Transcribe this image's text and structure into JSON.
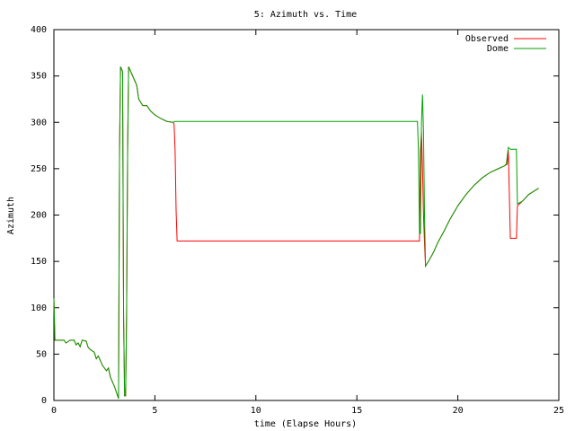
{
  "chart_data": {
    "type": "line",
    "title": "5: Azimuth vs. Time",
    "x_label": "time (Elapse Hours)",
    "y_label": "Azimuth",
    "xlim": [
      0,
      25
    ],
    "xticks": [
      0,
      5,
      10,
      15,
      20,
      25
    ],
    "ylim": [
      0,
      400
    ],
    "yticks": [
      0,
      50,
      100,
      150,
      200,
      250,
      300,
      350,
      400
    ],
    "grid": false,
    "legend": "top-right",
    "series": [
      {
        "name": "Observed",
        "color": "#ff0000",
        "x": [
          0,
          0.05,
          0.5,
          0.6,
          0.8,
          1,
          1.1,
          1.2,
          1.3,
          1.4,
          1.6,
          1.7,
          1.8,
          2.0,
          2.1,
          2.2,
          2.4,
          2.5,
          2.6,
          2.7,
          2.8,
          3.0,
          3.2,
          3.25,
          3.3,
          3.4,
          3.45,
          3.5,
          3.55,
          3.6,
          3.65,
          3.7,
          3.9,
          4.1,
          4.2,
          4.4,
          4.6,
          4.8,
          5.0,
          5.3,
          5.6,
          5.9,
          5.95,
          6.0,
          6.05,
          6.1,
          18.1,
          18.15,
          18.2,
          18.25,
          18.3,
          18.35,
          18.4,
          18.6,
          18.8,
          19.0,
          19.3,
          19.6,
          20.0,
          20.4,
          20.8,
          21.2,
          21.6,
          22.0,
          22.3,
          22.45,
          22.5,
          22.6,
          22.9,
          22.95,
          23.2,
          23.5,
          24.0
        ],
        "values": [
          110,
          65,
          65,
          62,
          65,
          65,
          60,
          62,
          58,
          65,
          64,
          57,
          55,
          52,
          45,
          48,
          38,
          35,
          32,
          35,
          25,
          15,
          2,
          270,
          360,
          355,
          90,
          5,
          5,
          95,
          270,
          360,
          350,
          340,
          325,
          318,
          318,
          312,
          308,
          304,
          301,
          300,
          298,
          270,
          205,
          172,
          172,
          270,
          290,
          250,
          200,
          170,
          145,
          152,
          160,
          170,
          182,
          195,
          210,
          222,
          232,
          240,
          246,
          250,
          253,
          255,
          270,
          175,
          175,
          210,
          215,
          222,
          229
        ]
      },
      {
        "name": "Dome",
        "color": "#00a000",
        "x": [
          0,
          0.05,
          0.5,
          0.6,
          0.8,
          1,
          1.1,
          1.2,
          1.3,
          1.4,
          1.6,
          1.7,
          1.8,
          2.0,
          2.1,
          2.2,
          2.4,
          2.5,
          2.6,
          2.7,
          2.8,
          3.0,
          3.2,
          3.25,
          3.3,
          3.4,
          3.45,
          3.5,
          3.55,
          3.6,
          3.65,
          3.7,
          3.9,
          4.1,
          4.2,
          4.4,
          4.6,
          4.8,
          5.0,
          5.3,
          5.6,
          5.9,
          6.0,
          18.0,
          18.05,
          18.1,
          18.15,
          18.2,
          18.25,
          18.3,
          18.35,
          18.4,
          18.6,
          18.8,
          19.0,
          19.3,
          19.6,
          20.0,
          20.4,
          20.8,
          21.2,
          21.6,
          22.0,
          22.3,
          22.4,
          22.5,
          22.6,
          22.9,
          22.95,
          23.2,
          23.5,
          24.0
        ],
        "values": [
          110,
          65,
          65,
          62,
          65,
          65,
          60,
          62,
          58,
          65,
          64,
          57,
          55,
          52,
          45,
          48,
          38,
          35,
          32,
          35,
          25,
          15,
          2,
          270,
          360,
          355,
          90,
          5,
          5,
          95,
          270,
          360,
          350,
          340,
          325,
          318,
          318,
          312,
          308,
          304,
          301,
          300,
          301,
          301,
          270,
          180,
          180,
          300,
          330,
          290,
          200,
          145,
          152,
          160,
          170,
          182,
          195,
          210,
          222,
          232,
          240,
          246,
          250,
          253,
          255,
          273,
          271,
          271,
          212,
          215,
          222,
          229
        ]
      }
    ]
  }
}
